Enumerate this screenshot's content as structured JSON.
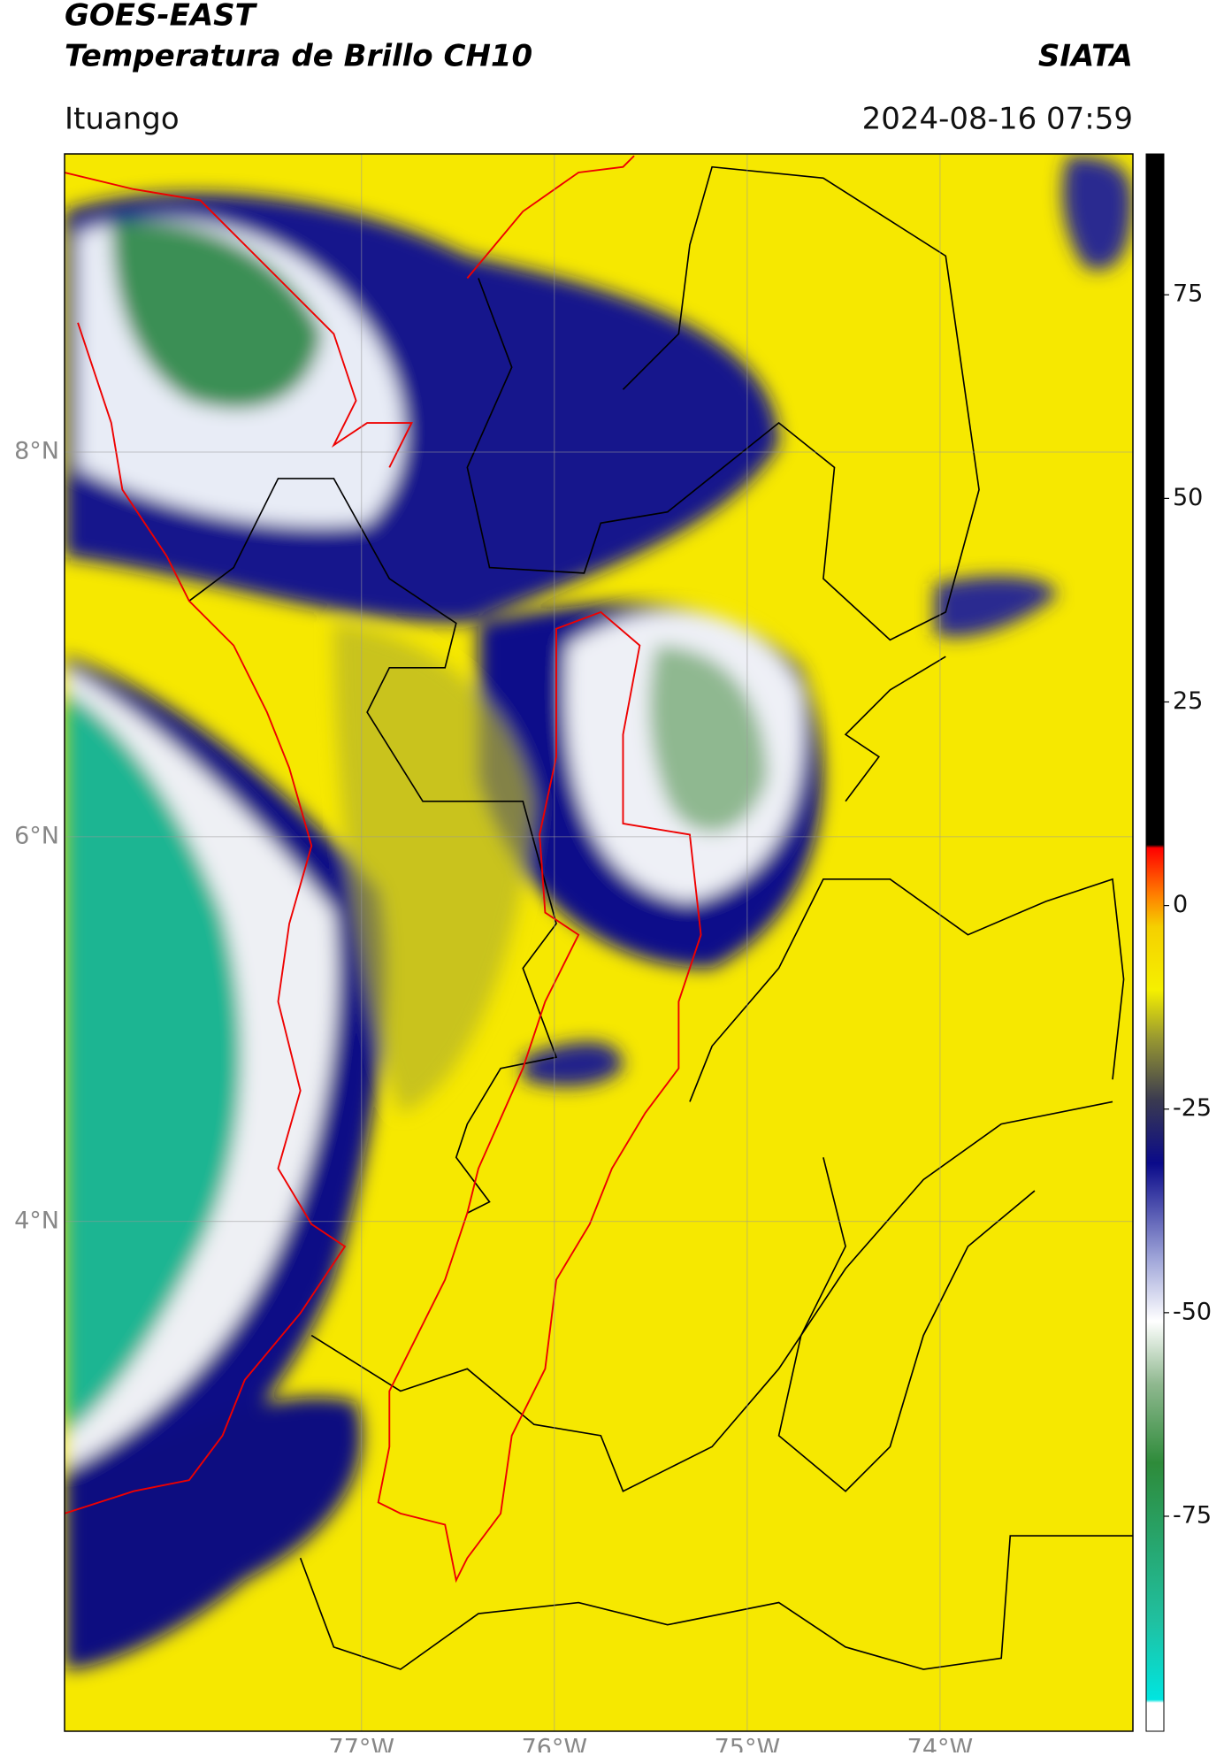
{
  "header": {
    "title": "GOES-EAST",
    "subtitle": "Temperatura de Brillo CH10",
    "source": "SIATA",
    "location": "Ituango",
    "datetime": "2024-08-16 07:59"
  },
  "map": {
    "lat_range": [
      1.35,
      9.55
    ],
    "lon_range": [
      -78.54,
      -73.0
    ],
    "lat_ticks": [
      {
        "value": 8,
        "label": "8°N"
      },
      {
        "value": 6,
        "label": "6°N"
      },
      {
        "value": 4,
        "label": "4°N"
      }
    ],
    "lon_ticks": [
      {
        "value": -77,
        "label": "77°W"
      },
      {
        "value": -76,
        "label": "76°W"
      },
      {
        "value": -75,
        "label": "75°W"
      },
      {
        "value": -74,
        "label": "74°W"
      }
    ],
    "grid": true
  },
  "colorbar": {
    "range": [
      -101.4,
      92.3
    ],
    "ticks": [
      75,
      50,
      25,
      0,
      -25,
      -50,
      -75
    ]
  }
}
